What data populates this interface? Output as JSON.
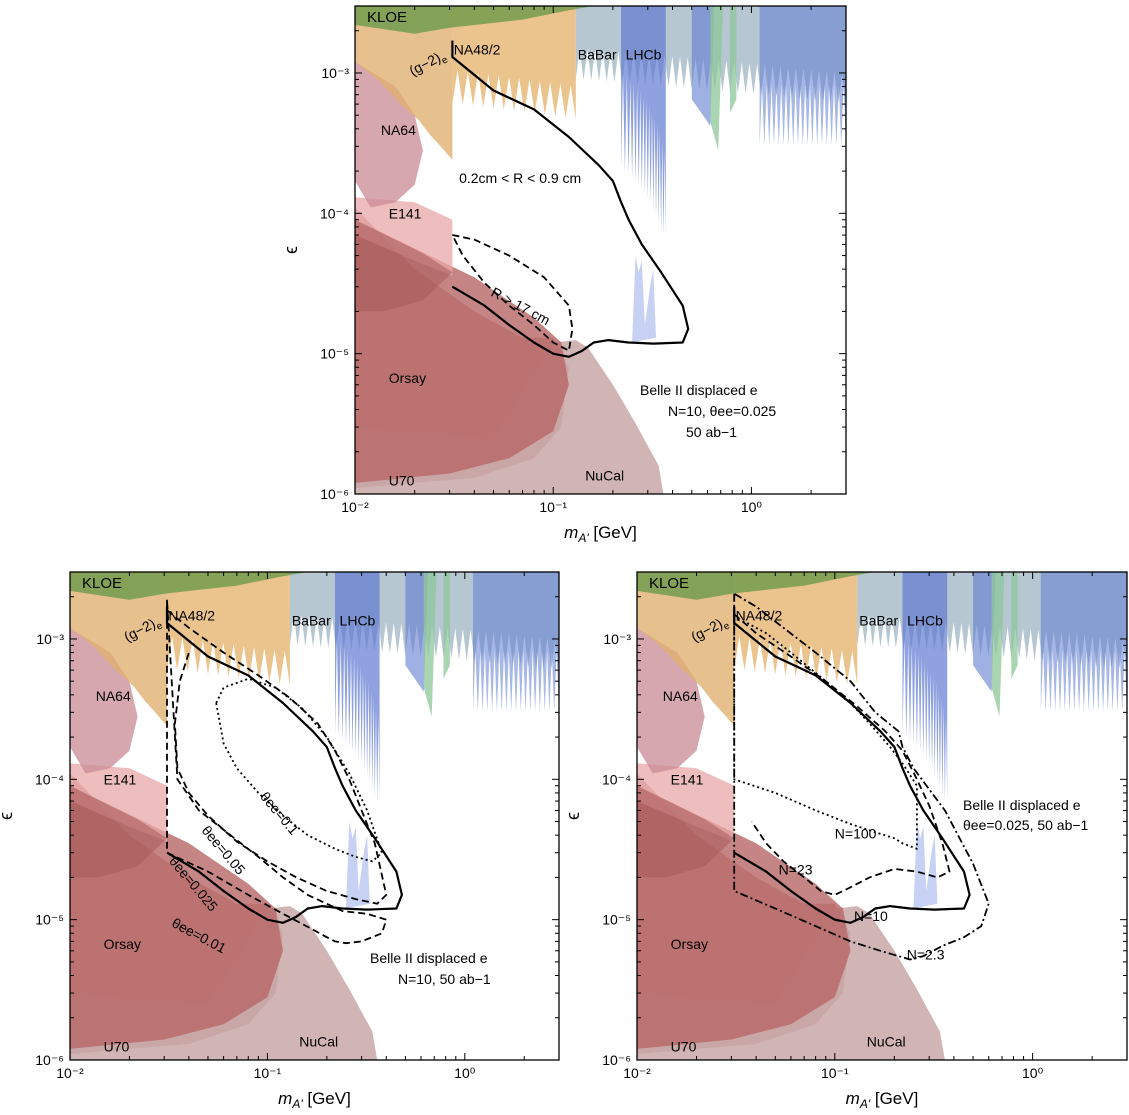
{
  "axis_text": {
    "xlabel_var": "m",
    "xlabel_sub": "A'",
    "xlabel_unit": " [GeV]",
    "ylabel": "ϵ"
  },
  "colors": {
    "kloe": "#6b9a4a",
    "g2": "#e0b070",
    "na48": "#e8b878",
    "babar": "#9fb4c2",
    "lhcb": "#5f7bd1",
    "lhcb_light": "#b9c6f0",
    "na64": "#c98a95",
    "e141": "#e8a8a8",
    "orsay": "#b86666",
    "u70": "#c08080",
    "nucal": "#c9a8a8",
    "green_strip": "#8cc79a"
  },
  "region_labels": {
    "kloe": "KLOE",
    "g2_base": "(g−2)",
    "g2_sub": "e",
    "na48": "NA48/2",
    "babar": "BaBar",
    "lhcb": "LHCb",
    "na64": "NA64",
    "e141": "E141",
    "orsay": "Orsay",
    "nucal": "NuCal",
    "u70": "U70"
  },
  "panels": {
    "top": {
      "annotations": {
        "r_small": "0.2cm < R < 0.9 cm",
        "r_large": "R > 17 cm"
      },
      "legend_lines": [
        "Belle II displaced e",
        "N=10, θee=0.025",
        "50 ab−1"
      ]
    },
    "left": {
      "annotations": {
        "t01": "θee=0.1",
        "t005": "θee=0.05",
        "t0025": "θee=0.025",
        "t001": "θee=0.01"
      },
      "legend_lines": [
        "Belle II displaced e",
        "N=10, 50 ab−1"
      ]
    },
    "right": {
      "annotations": {
        "n100": "N=100",
        "n23": "N=23",
        "n10": "N=10",
        "n23b": "N=2.3"
      },
      "legend_lines": [
        "Belle II displaced e",
        "θee=0.025, 50 ab−1"
      ]
    }
  },
  "chart_data": [
    {
      "type": "area",
      "panel": "top",
      "xscale": "log",
      "yscale": "log",
      "xlim": [
        0.01,
        3
      ],
      "ylim": [
        1e-06,
        0.003
      ],
      "xticks": [
        "10⁻²",
        "10⁻¹",
        "10⁰"
      ],
      "yticks": [
        "10⁻⁶",
        "10⁻⁵",
        "10⁻⁴",
        "10⁻³"
      ],
      "series": [
        {
          "name": "0.2cm < R < 0.9 cm",
          "style": "solid",
          "x": [
            0.031,
            0.031,
            0.05,
            0.08,
            0.12,
            0.17,
            0.2,
            0.22,
            0.24,
            0.28,
            0.35,
            0.45,
            0.48,
            0.45,
            0.32,
            0.24,
            0.19,
            0.16,
            0.14,
            0.13,
            0.12,
            0.1,
            0.08,
            0.06,
            0.045,
            0.031
          ],
          "y": [
            0.0017,
            0.0013,
            0.00075,
            0.00055,
            0.00035,
            0.00022,
            0.00017,
            0.00012,
            9e-05,
            6e-05,
            3.8e-05,
            2.2e-05,
            1.5e-05,
            1.2e-05,
            1.18e-05,
            1.2e-05,
            1.25e-05,
            1.2e-05,
            1.05e-05,
            1e-05,
            9.5e-06,
            1e-05,
            1.2e-05,
            1.6e-05,
            2.2e-05,
            3e-05
          ]
        },
        {
          "name": "R > 17 cm",
          "style": "dashed",
          "x": [
            0.031,
            0.04,
            0.06,
            0.09,
            0.12,
            0.125,
            0.12,
            0.1,
            0.08,
            0.06,
            0.045,
            0.035,
            0.031
          ],
          "y": [
            7e-05,
            6.5e-05,
            5e-05,
            3.5e-05,
            2.2e-05,
            1.5e-05,
            1.05e-05,
            1.2e-05,
            1.6e-05,
            2.2e-05,
            3.2e-05,
            5e-05,
            7e-05
          ]
        }
      ]
    },
    {
      "type": "area",
      "panel": "left",
      "xscale": "log",
      "yscale": "log",
      "xlim": [
        0.01,
        3
      ],
      "ylim": [
        1e-06,
        0.003
      ],
      "xticks": [
        "10⁻²",
        "10⁻¹",
        "10⁰"
      ],
      "yticks": [
        "10⁻⁶",
        "10⁻⁵",
        "10⁻⁴",
        "10⁻³"
      ],
      "series": [
        {
          "name": "θee=0.025",
          "style": "solid",
          "x": [
            0.031,
            0.031,
            0.05,
            0.08,
            0.12,
            0.17,
            0.2,
            0.22,
            0.24,
            0.28,
            0.35,
            0.45,
            0.48,
            0.45,
            0.32,
            0.24,
            0.19,
            0.16,
            0.14,
            0.13,
            0.12,
            0.1,
            0.08,
            0.06,
            0.045,
            0.031
          ],
          "y": [
            0.0017,
            0.0013,
            0.00075,
            0.00055,
            0.00035,
            0.00022,
            0.00017,
            0.00012,
            9e-05,
            6e-05,
            3.8e-05,
            2.2e-05,
            1.5e-05,
            1.2e-05,
            1.18e-05,
            1.2e-05,
            1.25e-05,
            1.2e-05,
            1.05e-05,
            1e-05,
            9.5e-06,
            1e-05,
            1.2e-05,
            1.6e-05,
            2.2e-05,
            3e-05
          ]
        },
        {
          "name": "θee=0.01",
          "style": "dashed",
          "x": [
            0.031,
            0.031,
            0.05,
            0.08,
            0.12,
            0.17,
            0.2,
            0.22,
            0.25,
            0.3,
            0.38,
            0.4,
            0.32,
            0.24,
            0.16,
            0.12,
            0.09,
            0.065,
            0.045,
            0.035,
            0.031
          ],
          "y": [
            0.0019,
            3e-05,
            2.2e-05,
            1.5e-05,
            1.1e-05,
            8.5e-06,
            7.5e-06,
            7e-06,
            6.8e-06,
            7e-06,
            8e-06,
            1e-05,
            1.1e-05,
            1.15e-05,
            1.5e-05,
            2e-05,
            2.8e-05,
            4e-05,
            6e-05,
            0.0001,
            0.0019
          ]
        },
        {
          "name": "θee=0.05",
          "style": "dashed",
          "x": [
            0.031,
            0.04,
            0.06,
            0.09,
            0.13,
            0.18,
            0.22,
            0.26,
            0.3,
            0.35,
            0.4,
            0.36,
            0.28,
            0.2,
            0.14,
            0.1,
            0.07,
            0.05,
            0.04,
            0.035,
            0.034,
            0.036,
            0.04
          ],
          "y": [
            0.0016,
            0.0012,
            0.0008,
            0.00055,
            0.00038,
            0.00025,
            0.00016,
            0.0001,
            6e-05,
            3.5e-05,
            1.5e-05,
            1.3e-05,
            1.4e-05,
            1.6e-05,
            2e-05,
            2.6e-05,
            3.6e-05,
            5.5e-05,
            8e-05,
            0.00012,
            0.00025,
            0.0005,
            0.0008
          ]
        },
        {
          "name": "θee=0.1",
          "style": "dotted",
          "x": [
            0.055,
            0.06,
            0.08,
            0.11,
            0.15,
            0.2,
            0.26,
            0.32,
            0.38,
            0.34,
            0.28,
            0.22,
            0.16,
            0.12,
            0.09,
            0.07,
            0.06,
            0.055
          ],
          "y": [
            0.00035,
            0.00045,
            0.00052,
            0.00045,
            0.00032,
            0.0002,
            0.00011,
            6e-05,
            3e-05,
            2.6e-05,
            2.8e-05,
            3.2e-05,
            4e-05,
            5.5e-05,
            8e-05,
            0.00012,
            0.00018,
            0.00035
          ]
        }
      ]
    },
    {
      "type": "area",
      "panel": "right",
      "xscale": "log",
      "yscale": "log",
      "xlim": [
        0.01,
        3
      ],
      "ylim": [
        1e-06,
        0.003
      ],
      "xticks": [
        "10⁻²",
        "10⁻¹",
        "10⁰"
      ],
      "yticks": [
        "10⁻⁶",
        "10⁻⁵",
        "10⁻⁴",
        "10⁻³"
      ],
      "series": [
        {
          "name": "N=10",
          "style": "solid",
          "x": [
            0.031,
            0.031,
            0.05,
            0.08,
            0.12,
            0.17,
            0.2,
            0.22,
            0.24,
            0.28,
            0.35,
            0.45,
            0.48,
            0.45,
            0.32,
            0.24,
            0.19,
            0.16,
            0.14,
            0.13,
            0.12,
            0.1,
            0.08,
            0.06,
            0.045,
            0.031
          ],
          "y": [
            0.0017,
            0.0013,
            0.00075,
            0.00055,
            0.00035,
            0.00022,
            0.00017,
            0.00012,
            9e-05,
            6e-05,
            3.8e-05,
            2.2e-05,
            1.5e-05,
            1.2e-05,
            1.18e-05,
            1.2e-05,
            1.25e-05,
            1.2e-05,
            1.05e-05,
            1e-05,
            9.5e-06,
            1e-05,
            1.2e-05,
            1.6e-05,
            2.2e-05,
            3e-05
          ]
        },
        {
          "name": "N=2.3",
          "style": "dashdot",
          "x": [
            0.031,
            0.031,
            0.05,
            0.08,
            0.12,
            0.17,
            0.21,
            0.24,
            0.28,
            0.35,
            0.45,
            0.55,
            0.6,
            0.5,
            0.36,
            0.25,
            0.22,
            0.21,
            0.16,
            0.12,
            0.08,
            0.055,
            0.04,
            0.031
          ],
          "y": [
            0.0021,
            1.6e-05,
            1.2e-05,
            9e-06,
            7e-06,
            6e-06,
            5.5e-06,
            5.2e-06,
            5.5e-06,
            6.5e-06,
            7.5e-06,
            9e-06,
            1.3e-05,
            2.5e-05,
            6e-05,
            0.00012,
            0.00017,
            0.00022,
            0.0003,
            0.0005,
            0.0008,
            0.0012,
            0.0017,
            0.0021
          ]
        },
        {
          "name": "N=23",
          "style": "dashed",
          "x": [
            0.031,
            0.04,
            0.06,
            0.09,
            0.13,
            0.18,
            0.22,
            0.26,
            0.3,
            0.35,
            0.38,
            0.33,
            0.26,
            0.2,
            0.15,
            0.12,
            0.1,
            0.085,
            0.07,
            0.055,
            0.045,
            0.038
          ],
          "y": [
            0.0015,
            0.0011,
            0.00075,
            0.0005,
            0.00033,
            0.00022,
            0.00016,
            0.0001,
            6.5e-05,
            3.5e-05,
            2.2e-05,
            2e-05,
            2.2e-05,
            2.3e-05,
            2e-05,
            1.7e-05,
            1.5e-05,
            1.6e-05,
            2e-05,
            2.6e-05,
            3.5e-05,
            5e-05
          ]
        },
        {
          "name": "N=100",
          "style": "dotted",
          "x": [
            0.031,
            0.031,
            0.05,
            0.08,
            0.12,
            0.16,
            0.2,
            0.22,
            0.26,
            0.26,
            0.22,
            0.19,
            0.15,
            0.12,
            0.09,
            0.06,
            0.045,
            0.036,
            0.031
          ],
          "y": [
            0.0014,
            0.0001,
            8e-05,
            6e-05,
            4.8e-05,
            4.2e-05,
            3.8e-05,
            3.5e-05,
            3.2e-05,
            9e-05,
            0.00013,
            0.00017,
            0.00025,
            0.00035,
            0.0005,
            0.0008,
            0.0011,
            0.0013,
            0.0014
          ]
        }
      ]
    }
  ]
}
